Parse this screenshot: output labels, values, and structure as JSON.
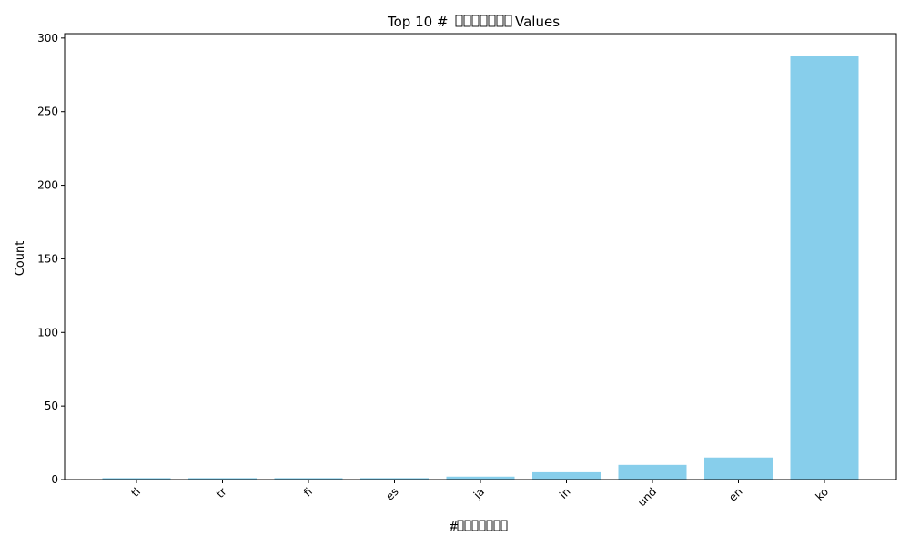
{
  "chart_data": {
    "type": "bar",
    "title_prefix": "Top 10 #",
    "title_suffix": " Values",
    "missing_glyph_count": 7,
    "xlabel_prefix": "#",
    "ylabel": "Count",
    "categories": [
      "tl",
      "tr",
      "fi",
      "es",
      "ja",
      "in",
      "und",
      "en",
      "ko"
    ],
    "values": [
      1,
      1,
      1,
      1,
      2,
      5,
      10,
      15,
      288
    ],
    "ylim": [
      0,
      303
    ],
    "yticks": [
      0,
      50,
      100,
      150,
      200,
      250,
      300
    ],
    "bar_color": "#87ceeb",
    "grid": false,
    "legend": "none"
  }
}
